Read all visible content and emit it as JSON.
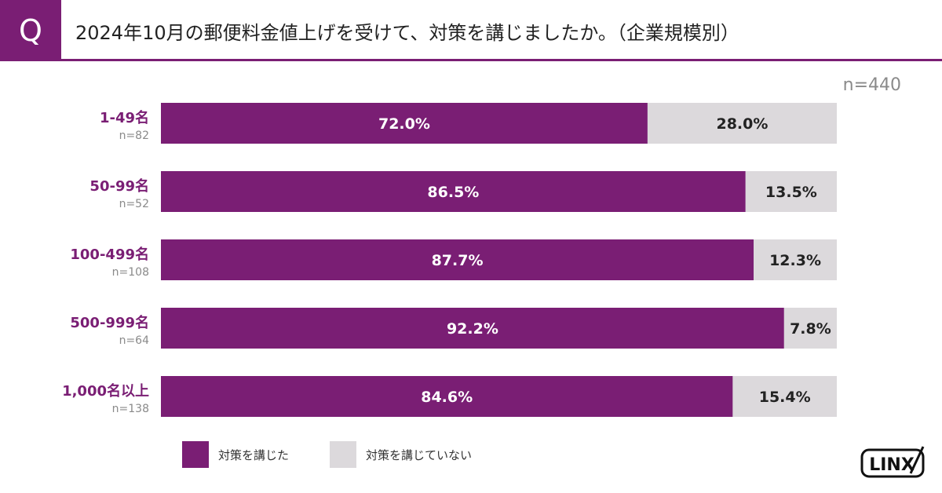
{
  "header": {
    "q_label": "Q",
    "title": "2024年10月の郵便料金値上げを受けて、対策を講じましたか。（企業規模別）"
  },
  "total_n": "n=440",
  "colors": {
    "accent": "#7a1e74",
    "rest": "#dcd9dc"
  },
  "logo": {
    "text": "LINX"
  },
  "chart_data": {
    "type": "bar",
    "orientation": "horizontal",
    "stacked": true,
    "categories": [
      "1-49名",
      "50-99名",
      "100-499名",
      "500-999名",
      "1,000名以上"
    ],
    "category_n": [
      "n=82",
      "n=52",
      "n=108",
      "n=64",
      "n=138"
    ],
    "series": [
      {
        "name": "対策を講じた",
        "values": [
          72.0,
          86.5,
          87.7,
          92.2,
          84.6
        ],
        "labels": [
          "72.0%",
          "86.5%",
          "87.7%",
          "92.2%",
          "84.6%"
        ],
        "color": "#7a1e74"
      },
      {
        "name": "対策を講じていない",
        "values": [
          28.0,
          13.5,
          12.3,
          7.8,
          15.4
        ],
        "labels": [
          "28.0%",
          "13.5%",
          "12.3%",
          "7.8%",
          "15.4%"
        ],
        "color": "#dcd9dc"
      }
    ],
    "xlim": [
      0,
      100
    ],
    "grid": false,
    "legend_position": "bottom-left"
  }
}
